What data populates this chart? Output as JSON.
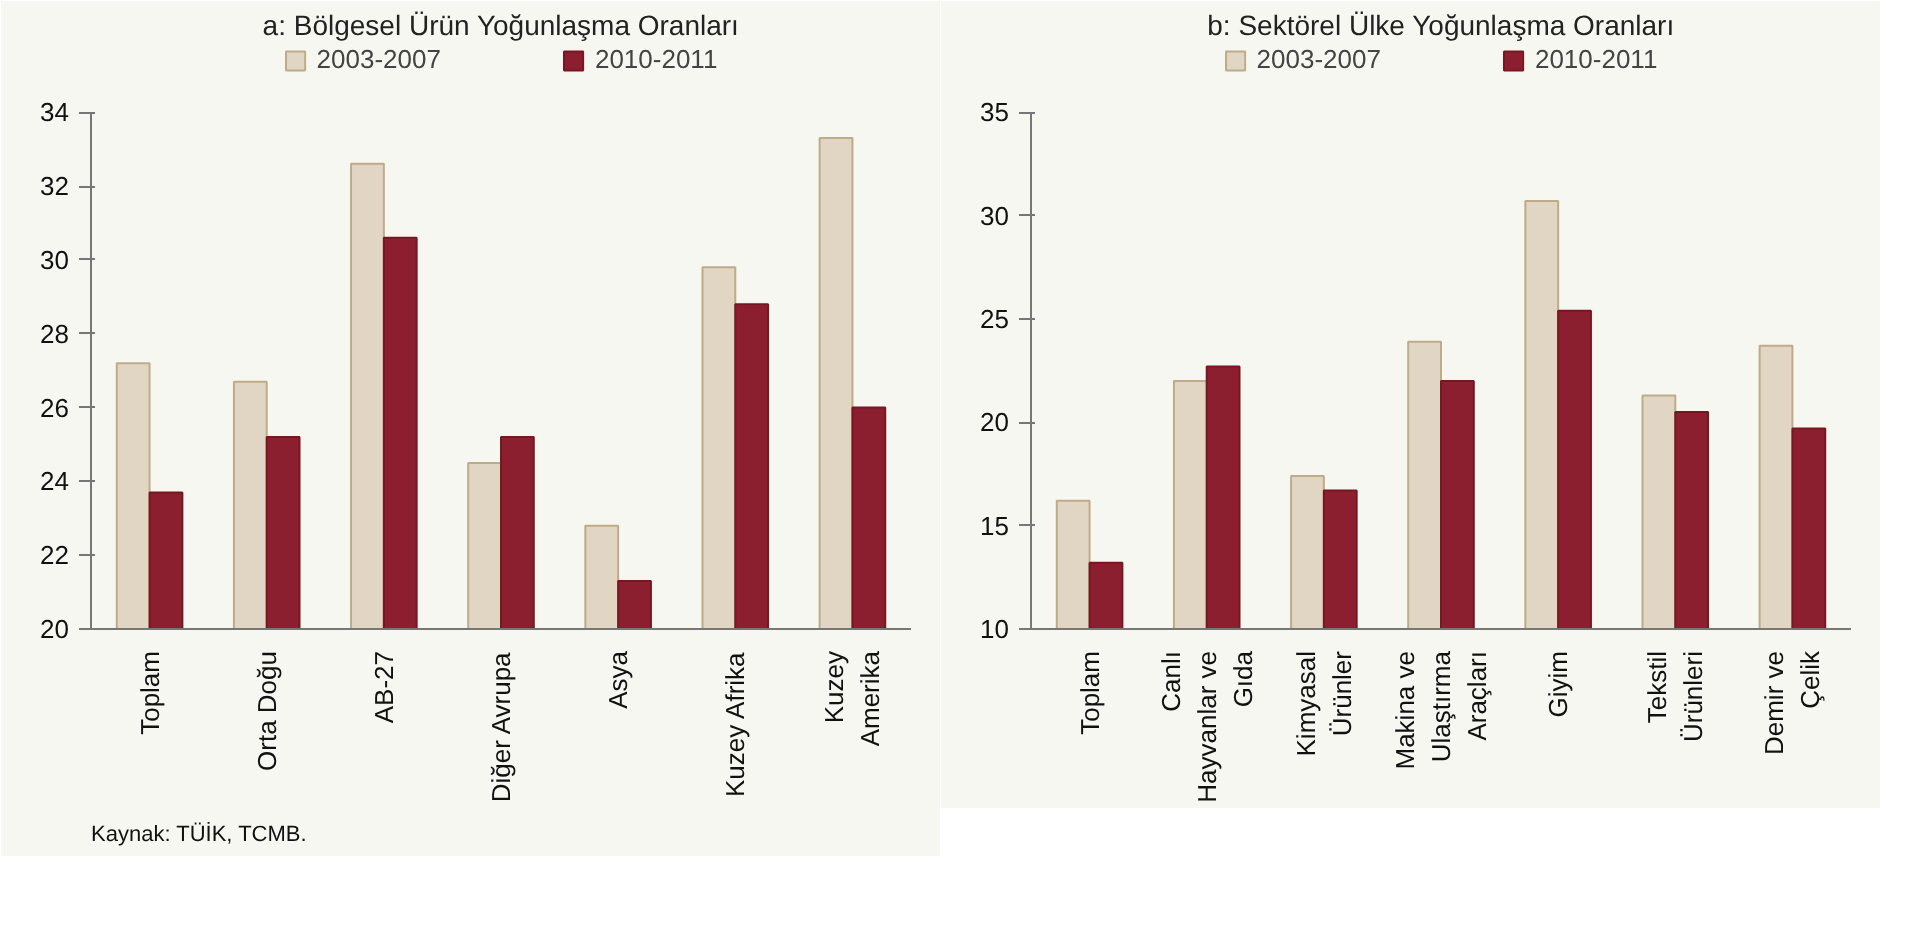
{
  "chart_data": [
    {
      "type": "bar",
      "title": "a: Bölgesel Ürün Yoğunlaşma Oranları",
      "categories": [
        "Toplam",
        "Orta Doğu",
        "AB-27",
        "Diğer Avrupa",
        "Asya",
        "Kuzey Afrika",
        "Kuzey Amerika"
      ],
      "series": [
        {
          "name": "2003-2007",
          "color": "#e0d6c3",
          "values": [
            27.2,
            26.7,
            32.6,
            24.5,
            22.8,
            29.8,
            33.3
          ]
        },
        {
          "name": "2010-2011",
          "color": "#8b1f2f",
          "values": [
            23.7,
            25.2,
            30.6,
            25.2,
            21.3,
            28.8,
            26.0
          ]
        }
      ],
      "ylim": [
        20,
        34
      ],
      "yticks": [
        20,
        22,
        24,
        26,
        28,
        30,
        32,
        34
      ],
      "grid": false,
      "legend": "top",
      "annotations": [
        "Kaynak:  TÜİK, TCMB."
      ]
    },
    {
      "type": "bar",
      "title": "b: Sektörel Ülke Yoğunlaşma Oranları",
      "categories": [
        "Toplam",
        "Canlı Hayvanlar ve Gıda",
        "Kimyasal Ürünler",
        "Makina ve Ulaştırma Araçları",
        "Giyim",
        "Tekstil Ürünleri",
        "Demir ve Çelik"
      ],
      "series": [
        {
          "name": "2003-2007",
          "color": "#e0d6c3",
          "values": [
            16.2,
            22.0,
            17.4,
            23.9,
            30.7,
            21.3,
            23.7
          ]
        },
        {
          "name": "2010-2011",
          "color": "#8b1f2f",
          "values": [
            13.2,
            22.7,
            16.7,
            22.0,
            25.4,
            20.5,
            19.7
          ]
        }
      ],
      "ylim": [
        10,
        35
      ],
      "yticks": [
        10,
        15,
        20,
        25,
        30,
        35
      ],
      "grid": false,
      "legend": "top"
    }
  ]
}
